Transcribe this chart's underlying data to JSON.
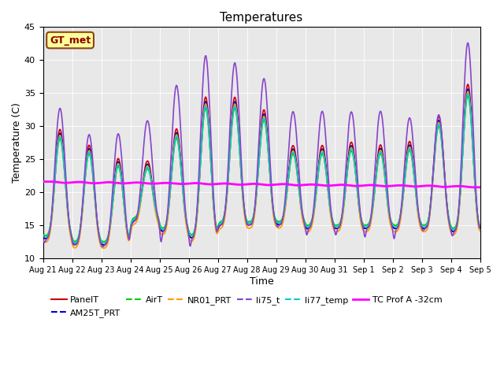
{
  "title": "Temperatures",
  "xlabel": "Time",
  "ylabel": "Temperature (C)",
  "ylim": [
    10,
    45
  ],
  "background_color": "#ffffff",
  "plot_bg_color": "#e8e8e8",
  "annotation_text": "GT_met",
  "annotation_text_color": "#8B0000",
  "annotation_bg_color": "#ffff99",
  "annotation_border_color": "#8B4513",
  "series": {
    "PanelT": {
      "color": "#cc0000",
      "lw": 1.2,
      "zorder": 4
    },
    "AM25T_PRT": {
      "color": "#0000cc",
      "lw": 1.2,
      "zorder": 4
    },
    "AirT": {
      "color": "#00cc00",
      "lw": 1.2,
      "zorder": 4
    },
    "NR01_PRT": {
      "color": "#ff9900",
      "lw": 1.2,
      "zorder": 4
    },
    "li75_t": {
      "color": "#8844cc",
      "lw": 1.2,
      "zorder": 5
    },
    "li77_temp": {
      "color": "#00cccc",
      "lw": 1.2,
      "zorder": 4
    },
    "TC Prof A -32cm": {
      "color": "#ff00ff",
      "lw": 2.0,
      "zorder": 6
    }
  },
  "tick_labels": [
    "Aug 21",
    "Aug 22",
    "Aug 23",
    "Aug 24",
    "Aug 25",
    "Aug 26",
    "Aug 27",
    "Aug 28",
    "Aug 29",
    "Aug 30",
    "Aug 31",
    "Sep 1",
    "Sep 2",
    "Sep 3",
    "Sep 4",
    "Sep 5"
  ],
  "num_days": 15,
  "pts_per_day": 144,
  "figsize": [
    6.4,
    4.8
  ],
  "dpi": 100
}
